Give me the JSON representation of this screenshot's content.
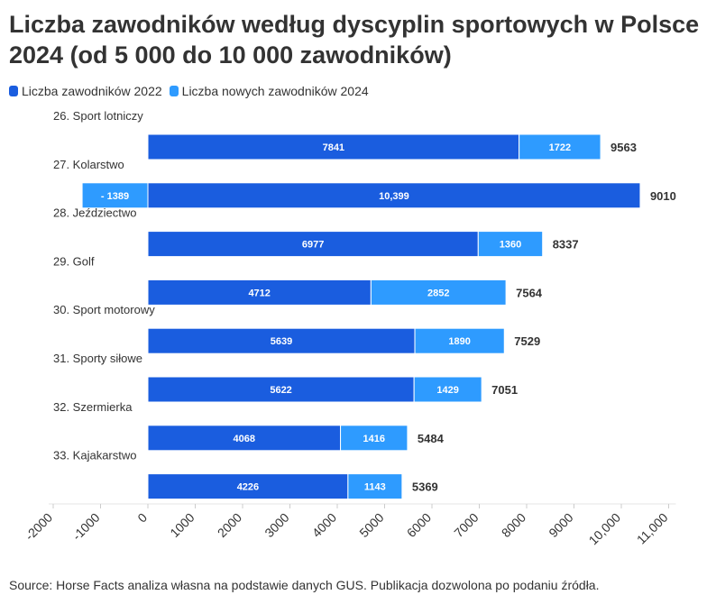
{
  "title": "Liczba zawodników według dyscyplin sportowych w Polsce 2024 (od 5 000 do 10 000 zawodników)",
  "legend": [
    {
      "label": "Liczba zawodników 2022",
      "color": "#1a5ddf"
    },
    {
      "label": "Liczba nowych zawodników 2024",
      "color": "#2e9bff"
    }
  ],
  "source": "Source: Horse Facts analiza własna na podstawie danych GUS. Publikacja dozwolona po podaniu źródła.",
  "chart_data": {
    "type": "bar",
    "orientation": "horizontal",
    "stacked": true,
    "categories": [
      "26. Sport lotniczy",
      "27. Kolarstwo",
      "28. Jeździectwo",
      "29. Golf",
      "30. Sport motorowy",
      "31. Sporty siłowe",
      "32. Szermierka",
      "33. Kajakarstwo"
    ],
    "series": [
      {
        "name": "Liczba zawodników 2022",
        "color": "#1a5ddf",
        "values": [
          7841,
          10399,
          6977,
          4712,
          5639,
          5622,
          4068,
          4226
        ],
        "labels": [
          "7841",
          "10,399",
          "6977",
          "4712",
          "5639",
          "5622",
          "4068",
          "4226"
        ]
      },
      {
        "name": "Liczba nowych zawodników 2024",
        "color": "#2e9bff",
        "values": [
          1722,
          -1389,
          1360,
          2852,
          1890,
          1429,
          1416,
          1143
        ],
        "labels": [
          "1722",
          "- 1389",
          "1360",
          "2852",
          "1890",
          "1429",
          "1416",
          "1143"
        ]
      }
    ],
    "totals": [
      "9563",
      "9010",
      "8337",
      "7564",
      "7529",
      "7051",
      "5484",
      "5369"
    ],
    "xlim": [
      -2000,
      11000
    ],
    "xticks": [
      -2000,
      -1000,
      0,
      1000,
      2000,
      3000,
      4000,
      5000,
      6000,
      7000,
      8000,
      9000,
      10000,
      11000
    ],
    "xtick_labels": [
      "-2000",
      "-1000",
      "0",
      "1000",
      "2000",
      "3000",
      "4000",
      "5000",
      "6000",
      "7000",
      "8000",
      "9000",
      "10,000",
      "11,000"
    ],
    "grid": false
  }
}
